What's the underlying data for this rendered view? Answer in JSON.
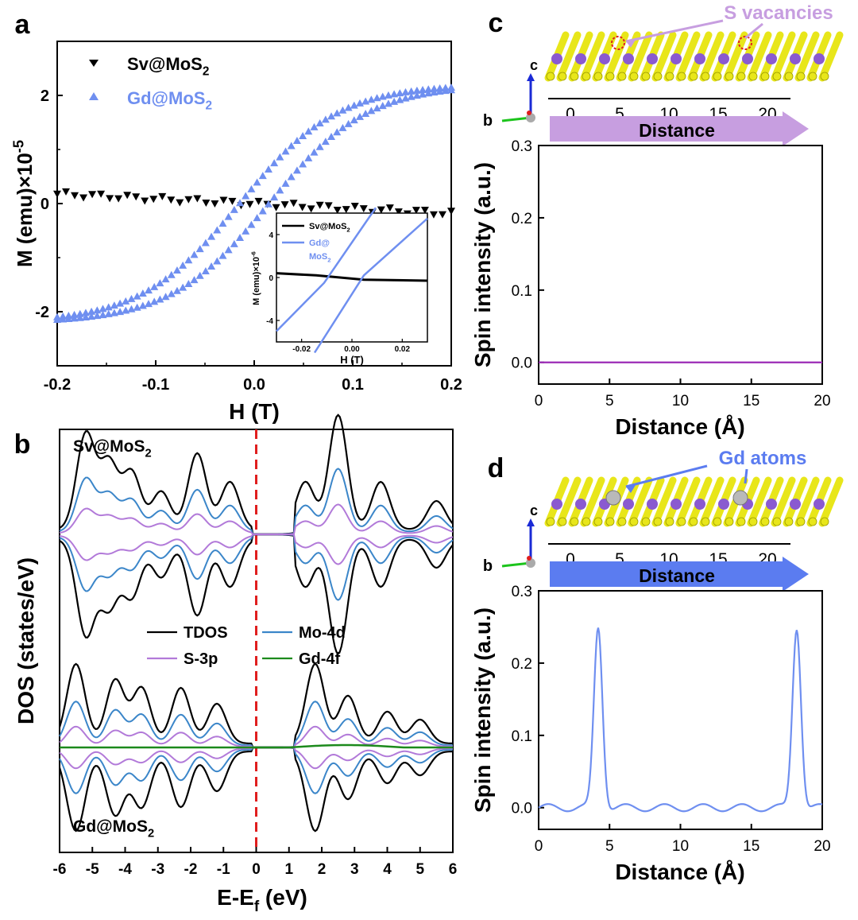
{
  "colors": {
    "black": "#000000",
    "blue": "#6f8ff0",
    "tdos": "#000000",
    "mo4d": "#3b86c9",
    "s3p": "#b27ad9",
    "gd4f": "#1c8a1c",
    "fermi": "#e01e1e",
    "spin_c": "#9b2bb6",
    "spin_d": "#6f8ff0",
    "arrow_c": "#c79ee0",
    "arrow_d": "#5b7cf0",
    "atom_yellow": "#e8e61a",
    "atom_purple": "#8a5ad0",
    "atom_grey": "#b9b9b9"
  },
  "chart_data": [
    {
      "panel": "a",
      "panel_label": "a",
      "type": "scatter",
      "title": "",
      "xlabel": "H (T)",
      "ylabel_prefix": "M (emu)×10",
      "ylabel_exp": "-5",
      "xlim": [
        -0.2,
        0.2
      ],
      "ylim": [
        -3.0,
        3.0
      ],
      "xticks": [
        "-0.2",
        "-0.1",
        "0.0",
        "0.1",
        "0.2"
      ],
      "yticks": [
        "-2",
        "0",
        "2"
      ],
      "series": [
        {
          "name_main": "Sv@MoS",
          "name_sub": "2",
          "marker": "triangle-down",
          "color": "#000000",
          "saturation": 0.0,
          "slope": -0.9,
          "coercivity": 0.0
        },
        {
          "name_main": "Gd@MoS",
          "name_sub": "2",
          "marker": "triangle-up",
          "color": "#6f8ff0",
          "saturation": 2.1,
          "tanh_scale": 0.1,
          "coercivity": 0.015
        }
      ],
      "inset": {
        "xlabel": "H (T)",
        "ylabel_prefix": "M (emu)×10",
        "ylabel_exp": "-6",
        "xlim": [
          -0.03,
          0.03
        ],
        "ylim": [
          -6.0,
          6.0
        ],
        "xticks": [
          "-0.02",
          "0.00",
          "0.02"
        ],
        "yticks": [
          "-4",
          "0",
          "4"
        ],
        "legend": [
          {
            "name_main": "Sv@MoS",
            "name_sub": "2",
            "color": "#000000"
          },
          {
            "name_main": "Gd@",
            "name_line2": "MoS",
            "name_sub": "2",
            "color": "#6f8ff0"
          }
        ]
      }
    },
    {
      "panel": "b",
      "panel_label": "b",
      "type": "line",
      "xlabel_prefix": "E-E",
      "xlabel_sub": "f",
      "xlabel_suffix": " (eV)",
      "ylabel": "DOS (states/eV)",
      "xlim": [
        -6,
        6
      ],
      "xticks": [
        "-6",
        "-5",
        "-4",
        "-3",
        "-2",
        "-1",
        "0",
        "1",
        "2",
        "3",
        "4",
        "5",
        "6"
      ],
      "fermi_level": 0,
      "legend": [
        {
          "name": "TDOS",
          "color": "#000000"
        },
        {
          "name": "Mo-4d",
          "color": "#3b86c9"
        },
        {
          "name": "S-3p",
          "color": "#b27ad9"
        },
        {
          "name": "Gd-4f",
          "color": "#1c8a1c"
        }
      ],
      "subplots": [
        {
          "name_main": "Sv@MoS",
          "name_sub": "2",
          "tdos_peaks": [
            [
              -5.2,
              1.0
            ],
            [
              -4.5,
              0.7
            ],
            [
              -3.8,
              0.6
            ],
            [
              -2.9,
              0.4
            ],
            [
              -1.8,
              0.8
            ],
            [
              -0.8,
              0.5
            ],
            [
              1.5,
              0.5
            ],
            [
              2.5,
              1.2
            ],
            [
              3.8,
              0.5
            ],
            [
              5.5,
              0.3
            ]
          ],
          "mo4d_scale": 0.55,
          "s3p_scale": 0.25,
          "has_gd4f": false
        },
        {
          "name_main": "Gd@MoS",
          "name_sub": "2",
          "tdos_peaks": [
            [
              -5.5,
              1.0
            ],
            [
              -4.3,
              0.8
            ],
            [
              -3.5,
              0.7
            ],
            [
              -2.3,
              0.7
            ],
            [
              -1.2,
              0.5
            ],
            [
              1.8,
              1.0
            ],
            [
              2.8,
              0.6
            ],
            [
              4.0,
              0.4
            ],
            [
              5.0,
              0.3
            ]
          ],
          "mo4d_scale": 0.55,
          "s3p_scale": 0.25,
          "has_gd4f": true
        }
      ]
    },
    {
      "panel": "c",
      "panel_label": "c",
      "type": "line",
      "xlabel": "Distance (Å)",
      "ylabel": "Spin intensity (a.u.)",
      "xlim": [
        0,
        20
      ],
      "ylim": [
        -0.03,
        0.3
      ],
      "xticks": [
        "0",
        "5",
        "10",
        "15",
        "20"
      ],
      "yticks": [
        "0.0",
        "0.1",
        "0.2",
        "0.3"
      ],
      "series": [
        {
          "name": "spin",
          "x": [
            0,
            20
          ],
          "y": [
            0,
            0
          ],
          "color": "#9b2bb6"
        }
      ],
      "structure": {
        "annotation": "S vacancies",
        "arrow_label": "Distance",
        "scale_ticks": [
          "0",
          "5",
          "10",
          "15",
          "20"
        ],
        "axis_label": "c",
        "axis_label_b": "b"
      }
    },
    {
      "panel": "d",
      "panel_label": "d",
      "type": "line",
      "xlabel": "Distance (Å)",
      "ylabel": "Spin intensity (a.u.)",
      "xlim": [
        0,
        20
      ],
      "ylim": [
        -0.03,
        0.3
      ],
      "xticks": [
        "0",
        "5",
        "10",
        "15",
        "20"
      ],
      "yticks": [
        "0.0",
        "0.1",
        "0.2",
        "0.3"
      ],
      "series": [
        {
          "name": "spin",
          "peaks": [
            [
              4.2,
              0.25
            ],
            [
              18.2,
              0.25
            ]
          ],
          "peak_width": 0.3,
          "color": "#6f8ff0"
        }
      ],
      "structure": {
        "annotation": "Gd atoms",
        "arrow_label": "Distance",
        "scale_ticks": [
          "0",
          "5",
          "10",
          "15",
          "20"
        ],
        "axis_label": "c",
        "axis_label_b": "b"
      }
    }
  ]
}
